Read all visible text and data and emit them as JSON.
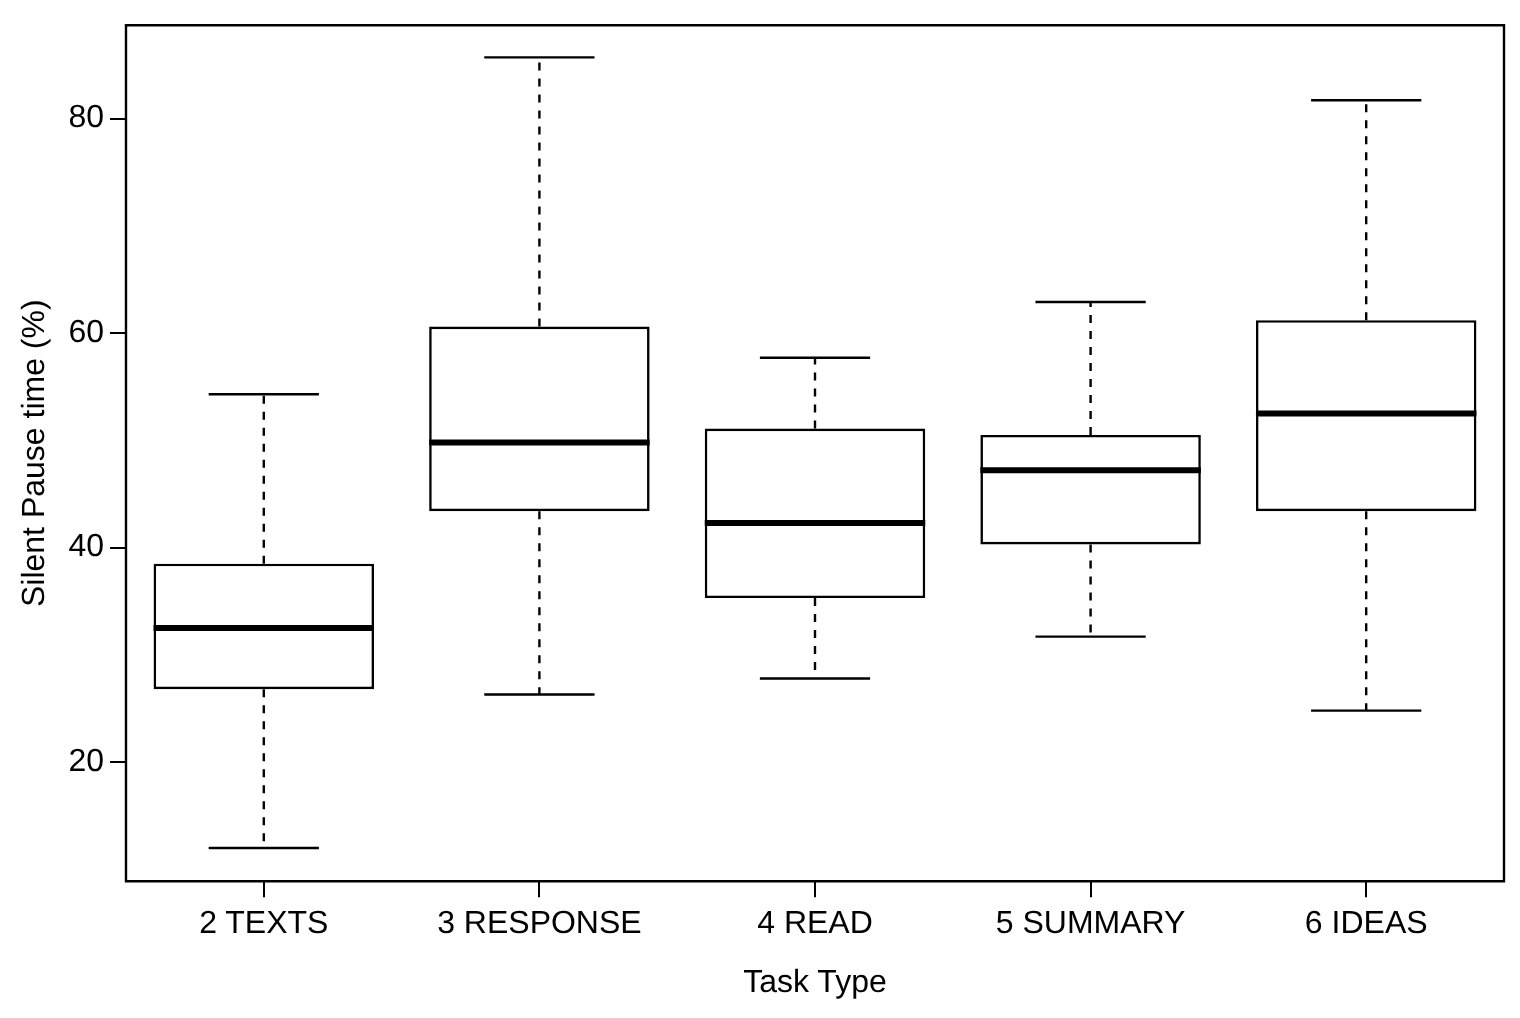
{
  "chart_data": {
    "type": "box",
    "xlabel": "Task Type",
    "ylabel": "Silent Pause time (%)",
    "categories": [
      "2 TEXTS",
      "3 RESPONSE",
      "4 READ",
      "5 SUMMARY",
      "6 IDEAS"
    ],
    "boxes": [
      {
        "low": 12.0,
        "q1": 26.8,
        "median": 32.5,
        "q3": 38.5,
        "high": 54.3
      },
      {
        "low": 26.3,
        "q1": 43.4,
        "median": 49.8,
        "q3": 60.6,
        "high": 85.7
      },
      {
        "low": 27.8,
        "q1": 35.3,
        "median": 42.3,
        "q3": 51.1,
        "high": 57.7
      },
      {
        "low": 31.7,
        "q1": 40.3,
        "median": 47.2,
        "q3": 50.5,
        "high": 62.9
      },
      {
        "low": 24.8,
        "q1": 43.4,
        "median": 52.5,
        "q3": 61.2,
        "high": 81.7
      }
    ],
    "ylim": [
      8.9,
      88.7
    ],
    "yticks": [
      20,
      40,
      60,
      80
    ],
    "grid": false,
    "legend": false
  }
}
